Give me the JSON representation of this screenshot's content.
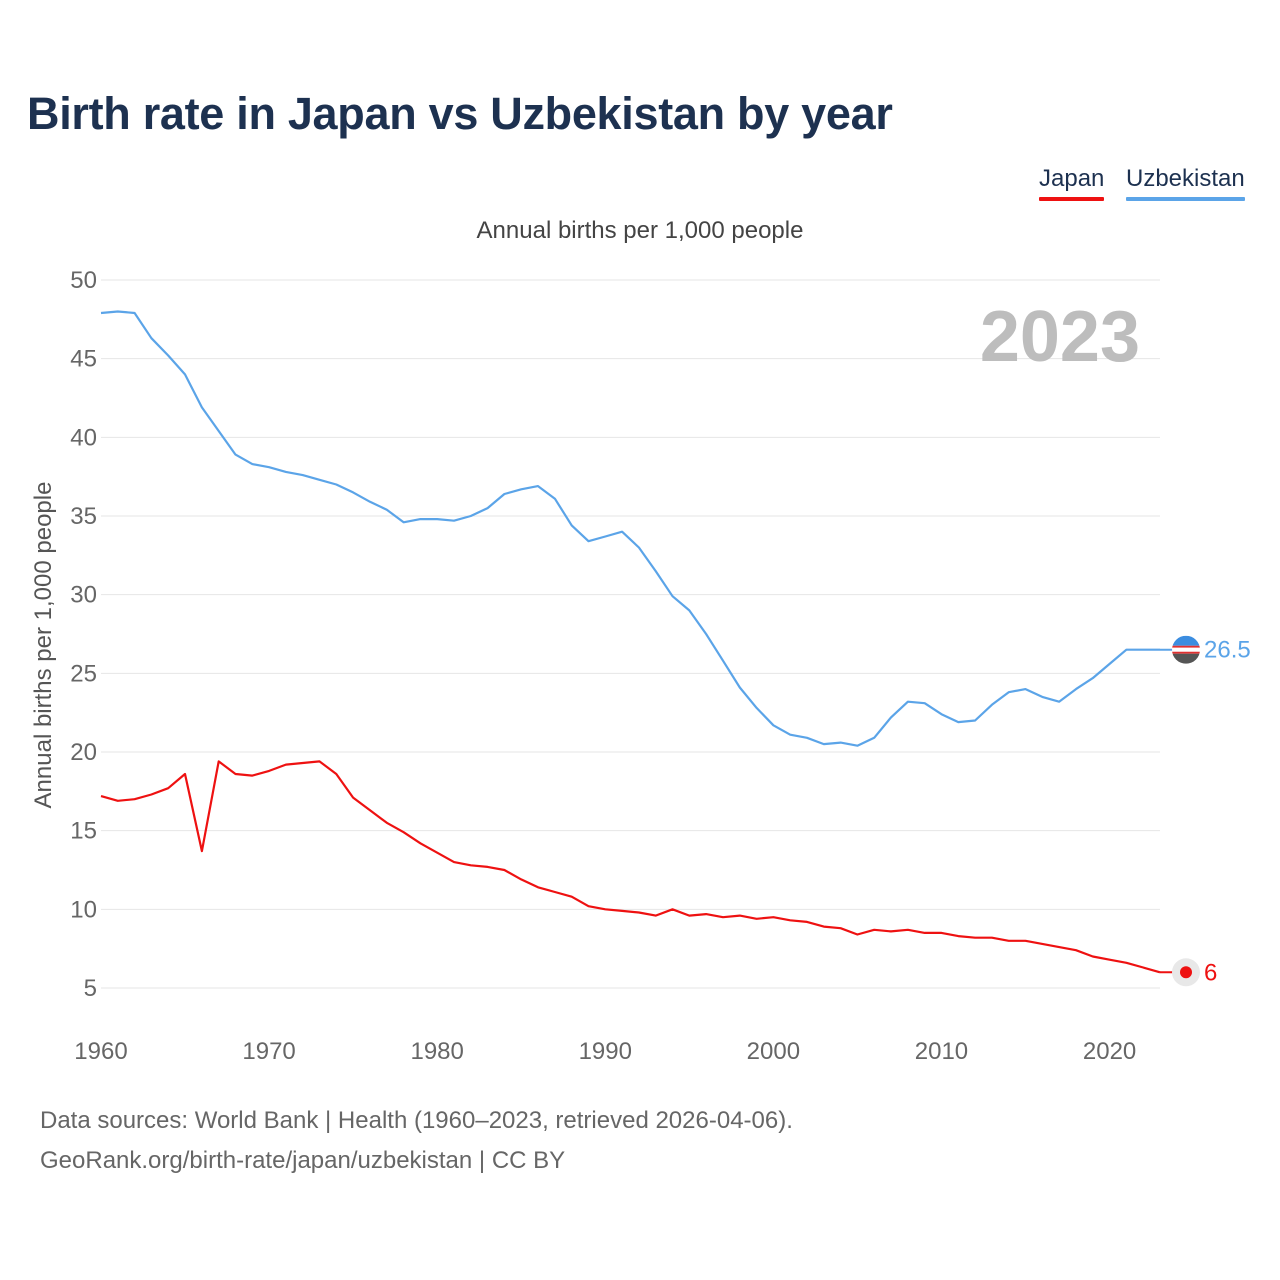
{
  "title": "Birth rate in Japan vs Uzbekistan by year",
  "subtitle": "Annual births per 1,000 people",
  "footer": {
    "line1": "Data sources: World Bank | Health (1960–2023, retrieved 2026-04-06).",
    "line2": "GeoRank.org/birth-rate/japan/uzbekistan | CC BY"
  },
  "chart_data": {
    "type": "line",
    "title": "Birth rate in Japan vs Uzbekistan by year",
    "subtitle": "Annual births per 1,000 people",
    "xlabel": "",
    "ylabel": "Annual births per 1,000 people",
    "year_label": "2023",
    "xlim": [
      1960,
      2023
    ],
    "ylim": [
      2.5,
      50
    ],
    "x_ticks": [
      1960,
      1970,
      1980,
      1990,
      2000,
      2010,
      2020
    ],
    "y_ticks": [
      5,
      10,
      15,
      20,
      25,
      30,
      35,
      40,
      45,
      50
    ],
    "grid": true,
    "legend_position": "top-right",
    "x": [
      1960,
      1961,
      1962,
      1963,
      1964,
      1965,
      1966,
      1967,
      1968,
      1969,
      1970,
      1971,
      1972,
      1973,
      1974,
      1975,
      1976,
      1977,
      1978,
      1979,
      1980,
      1981,
      1982,
      1983,
      1984,
      1985,
      1986,
      1987,
      1988,
      1989,
      1990,
      1991,
      1992,
      1993,
      1994,
      1995,
      1996,
      1997,
      1998,
      1999,
      2000,
      2001,
      2002,
      2003,
      2004,
      2005,
      2006,
      2007,
      2008,
      2009,
      2010,
      2011,
      2012,
      2013,
      2014,
      2015,
      2016,
      2017,
      2018,
      2019,
      2020,
      2021,
      2022,
      2023
    ],
    "series": [
      {
        "name": "Japan",
        "color": "#ee1111",
        "end_label": "6",
        "values": [
          17.2,
          16.9,
          17.0,
          17.3,
          17.7,
          18.6,
          13.7,
          19.4,
          18.6,
          18.5,
          18.8,
          19.2,
          19.3,
          19.4,
          18.6,
          17.1,
          16.3,
          15.5,
          14.9,
          14.2,
          13.6,
          13.0,
          12.8,
          12.7,
          12.5,
          11.9,
          11.4,
          11.1,
          10.8,
          10.2,
          10.0,
          9.9,
          9.8,
          9.6,
          10.0,
          9.6,
          9.7,
          9.5,
          9.6,
          9.4,
          9.5,
          9.3,
          9.2,
          8.9,
          8.8,
          8.4,
          8.7,
          8.6,
          8.7,
          8.5,
          8.5,
          8.3,
          8.2,
          8.2,
          8.0,
          8.0,
          7.8,
          7.6,
          7.4,
          7.0,
          6.8,
          6.6,
          6.3,
          6.0
        ]
      },
      {
        "name": "Uzbekistan",
        "color": "#5ba4e8",
        "end_label": "26.5",
        "values": [
          47.9,
          48.0,
          47.9,
          46.3,
          45.2,
          44.0,
          41.9,
          40.4,
          38.9,
          38.3,
          38.1,
          37.8,
          37.6,
          37.3,
          37.0,
          36.5,
          35.9,
          35.4,
          34.6,
          34.8,
          34.8,
          34.7,
          35.0,
          35.5,
          36.4,
          36.7,
          36.9,
          36.1,
          34.4,
          33.4,
          33.7,
          34.0,
          33.0,
          31.5,
          29.9,
          29.0,
          27.5,
          25.8,
          24.1,
          22.8,
          21.7,
          21.1,
          20.9,
          20.5,
          20.6,
          20.4,
          20.9,
          22.2,
          23.2,
          23.1,
          22.4,
          21.9,
          22.0,
          23.0,
          23.8,
          24.0,
          23.5,
          23.2,
          24.0,
          24.7,
          25.6,
          26.5,
          26.5,
          26.5
        ]
      }
    ]
  }
}
